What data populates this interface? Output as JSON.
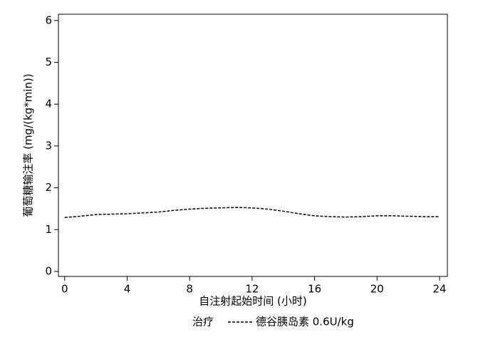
{
  "chart_data": {
    "type": "line",
    "x_label": "自注射起始时间 (小时)",
    "y_label": "葡萄糖输注率 (mg/(kg*min))",
    "legend_title": "治疗",
    "x": [
      0,
      1,
      2,
      3,
      4,
      5,
      6,
      7,
      8,
      9,
      10,
      11,
      12,
      13,
      14,
      15,
      16,
      17,
      18,
      19,
      20,
      21,
      22,
      23,
      24
    ],
    "series": [
      {
        "name": "德谷胰岛素 0.6U/kg",
        "color": "#000000",
        "values": [
          1.29,
          1.32,
          1.36,
          1.37,
          1.38,
          1.4,
          1.42,
          1.46,
          1.49,
          1.51,
          1.52,
          1.53,
          1.52,
          1.49,
          1.44,
          1.38,
          1.33,
          1.31,
          1.3,
          1.31,
          1.33,
          1.33,
          1.32,
          1.31,
          1.31
        ]
      }
    ],
    "xlim": [
      -0.4,
      24.5
    ],
    "xticks": [
      0,
      4,
      8,
      12,
      16,
      20,
      24
    ],
    "ylim": [
      -0.12,
      6.15
    ],
    "yticks": [
      0,
      1,
      2,
      3,
      4,
      5,
      6
    ],
    "grid": false
  }
}
